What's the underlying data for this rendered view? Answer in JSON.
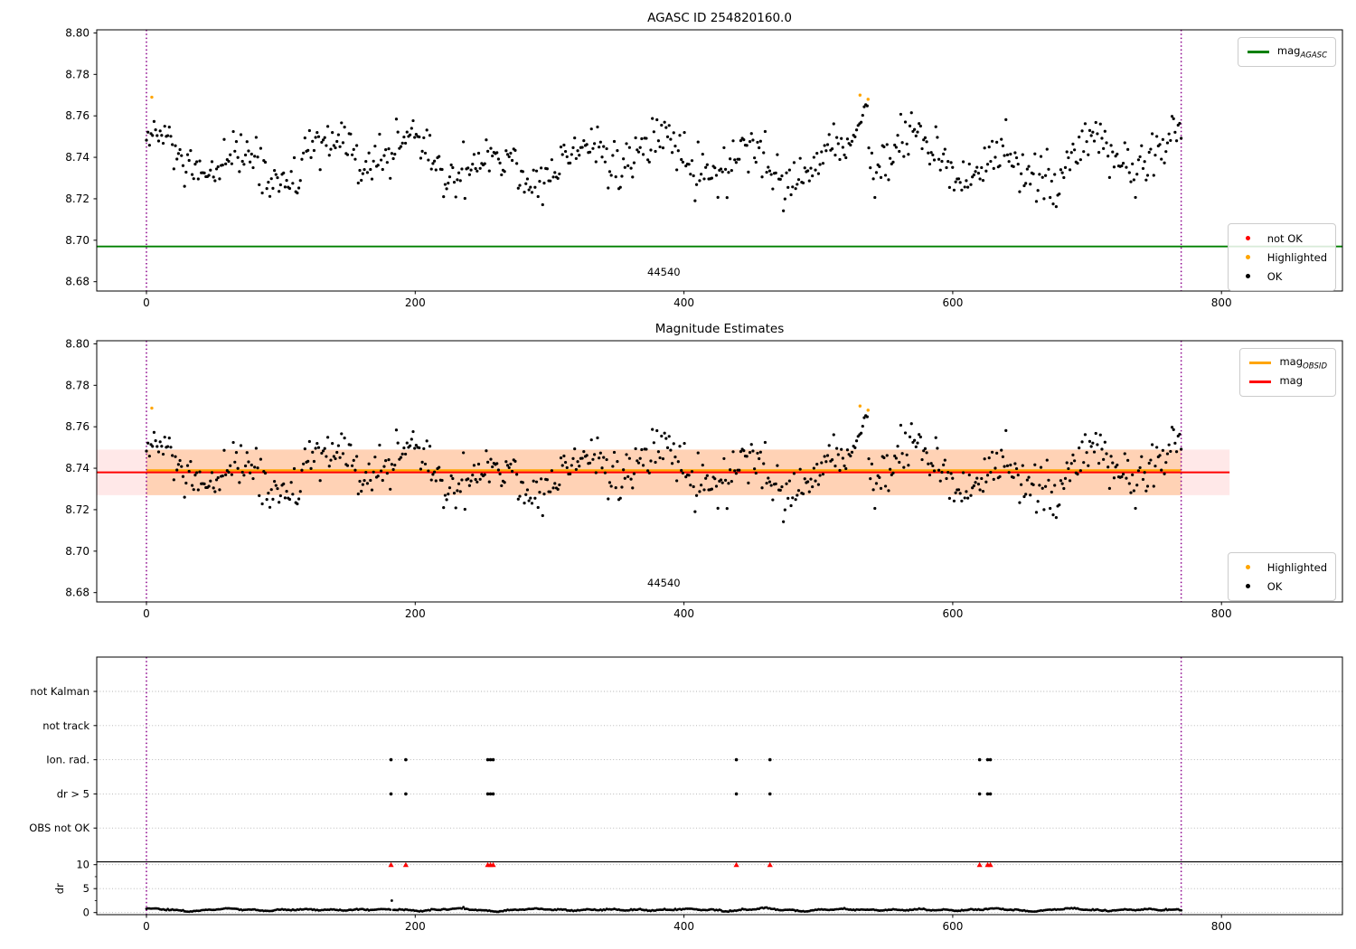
{
  "page": {
    "background": "#ffffff"
  },
  "colors": {
    "ok": "#000000",
    "not_ok": "#ff0000",
    "highlighted": "#ffa500",
    "mag_agasc_line": "#008000",
    "mag_line": "#ff0000",
    "mag_obsid_line": "#ffa500",
    "obsid_vline": "#8b008b",
    "band_full": "rgba(255,0,0,0.09)",
    "band_obsid": "rgba(255,130,0,0.22)",
    "grid": "#b0b0b0",
    "spine": "#000000"
  },
  "chart_data": [
    {
      "id": "agasc-mag-plot",
      "type": "scatter",
      "title": "AGASC ID 254820160.0",
      "x_ticks": [
        0,
        200,
        400,
        600,
        800
      ],
      "y_ticks": [
        8.68,
        8.7,
        8.72,
        8.74,
        8.76,
        8.78,
        8.8
      ],
      "xlim": [
        -37,
        890
      ],
      "ylim": [
        8.6755,
        8.8015
      ],
      "obsid_span": [
        0,
        770
      ],
      "annotation": {
        "text": "44540",
        "x": 385,
        "y": 8.683
      },
      "mag_agasc_line": {
        "value": 8.697,
        "color": "#008000",
        "x_from": -37,
        "x_to": 890
      },
      "vlines": [
        0,
        770
      ],
      "highlighted_points": [
        {
          "x": 4,
          "y": 8.769
        },
        {
          "x": 531,
          "y": 8.77
        },
        {
          "x": 537,
          "y": 8.768
        }
      ],
      "ok_series": {
        "name": "OK",
        "color": "#000000",
        "n": 680,
        "x_range": [
          0,
          770
        ],
        "base": 8.7385,
        "wave1_period": 63,
        "wave1_amp": 0.0085,
        "wave1_phase": 0.8,
        "wave2_period": 190,
        "wave2_amp": 0.0045,
        "wave2_phase": 2.0,
        "noise_sd": 0.0058,
        "clamp": [
          8.706,
          8.767
        ],
        "spike": {
          "x_from": 523,
          "x_to": 537,
          "y_from": 8.7445,
          "y_to": 8.767
        },
        "seed": 12345
      },
      "legend_top": [
        {
          "swatch": "line",
          "color": "#008000",
          "label": "mag",
          "sub": "AGASC"
        }
      ],
      "legend_bottom": [
        {
          "swatch": "dot",
          "color": "#ff0000",
          "label": "not OK"
        },
        {
          "swatch": "dot",
          "color": "#ffa500",
          "label": "Highlighted"
        },
        {
          "swatch": "dot",
          "color": "#000000",
          "label": "OK"
        }
      ]
    },
    {
      "id": "magnitude-estimates-plot",
      "type": "scatter",
      "title": "Magnitude Estimates",
      "x_ticks": [
        0,
        200,
        400,
        600,
        800
      ],
      "y_ticks": [
        8.68,
        8.7,
        8.72,
        8.74,
        8.76,
        8.78,
        8.8
      ],
      "xlim": [
        -37,
        890
      ],
      "ylim": [
        8.6755,
        8.8015
      ],
      "obsid_span": [
        0,
        770
      ],
      "annotation": {
        "text": "44540",
        "x": 385,
        "y": 8.683
      },
      "mag_line": {
        "value": 8.738,
        "color": "#ff0000",
        "x_from": -37,
        "x_to": 806
      },
      "mag_band": {
        "lo": 8.727,
        "hi": 8.749,
        "x_from": -37,
        "x_to": 806,
        "color": "rgba(255,0,0,0.09)"
      },
      "obsid_line": {
        "value": 8.739,
        "color": "#ffa500",
        "x_from": 0,
        "x_to": 770
      },
      "obsid_band": {
        "lo": 8.727,
        "hi": 8.749,
        "x_from": 0,
        "x_to": 770,
        "color": "rgba(255,130,0,0.22)"
      },
      "vlines": [
        0,
        770
      ],
      "highlighted_points": [
        {
          "x": 4,
          "y": 8.769
        },
        {
          "x": 531,
          "y": 8.77
        },
        {
          "x": 537,
          "y": 8.768
        }
      ],
      "legend_top": [
        {
          "swatch": "line",
          "color": "#ffa500",
          "label": "mag",
          "sub": "OBSID"
        },
        {
          "swatch": "line",
          "color": "#ff0000",
          "label": "mag",
          "sub": ""
        }
      ],
      "legend_bottom": [
        {
          "swatch": "dot",
          "color": "#ffa500",
          "label": "Highlighted"
        },
        {
          "swatch": "dot",
          "color": "#000000",
          "label": "OK"
        }
      ]
    },
    {
      "id": "flags-dr-plot",
      "type": "flags-and-dr",
      "x_ticks": [
        0,
        200,
        400,
        600,
        800
      ],
      "xlim": [
        -37,
        890
      ],
      "categories": [
        "not Kalman",
        "not track",
        "Ion. rad.",
        "dr > 5",
        "OBS not OK"
      ],
      "dr_axis": {
        "label": "dr",
        "ticks": [
          0,
          5,
          10
        ],
        "minor_ticks": [
          2.5,
          7.5
        ],
        "lim": [
          0,
          10
        ]
      },
      "separator_dr_value": 10.6,
      "vlines": [
        0,
        770
      ],
      "events": {
        "ion_rad_x": [
          182,
          193,
          254,
          256,
          258,
          439,
          464,
          620,
          626,
          628
        ],
        "dr_gt5_x": [
          182,
          193,
          254,
          256,
          258,
          439,
          464,
          620,
          626,
          628
        ],
        "dr_clipped_x": [
          182,
          193,
          254,
          256,
          258,
          439,
          464,
          620,
          626,
          628
        ],
        "dr_clipped_value": 10,
        "dot_color": "#000000",
        "clipped_color": "#ff0000"
      },
      "dr_series": {
        "name": "dr",
        "color": "#000000",
        "n": 680,
        "x_range": [
          0,
          770
        ],
        "base": 0.5,
        "wave1_period": 57,
        "wave1_amp": 0.28,
        "wave1_phase": 1.2,
        "wave2_period": 210,
        "wave2_phase": 0.5,
        "ripple_period": 19,
        "ripple_amp": 0.1,
        "noise_sd": 0.1,
        "clamp": [
          0.06,
          1.8
        ],
        "outlier": {
          "x": 183,
          "value": 2.5
        },
        "seed": 777
      }
    }
  ]
}
